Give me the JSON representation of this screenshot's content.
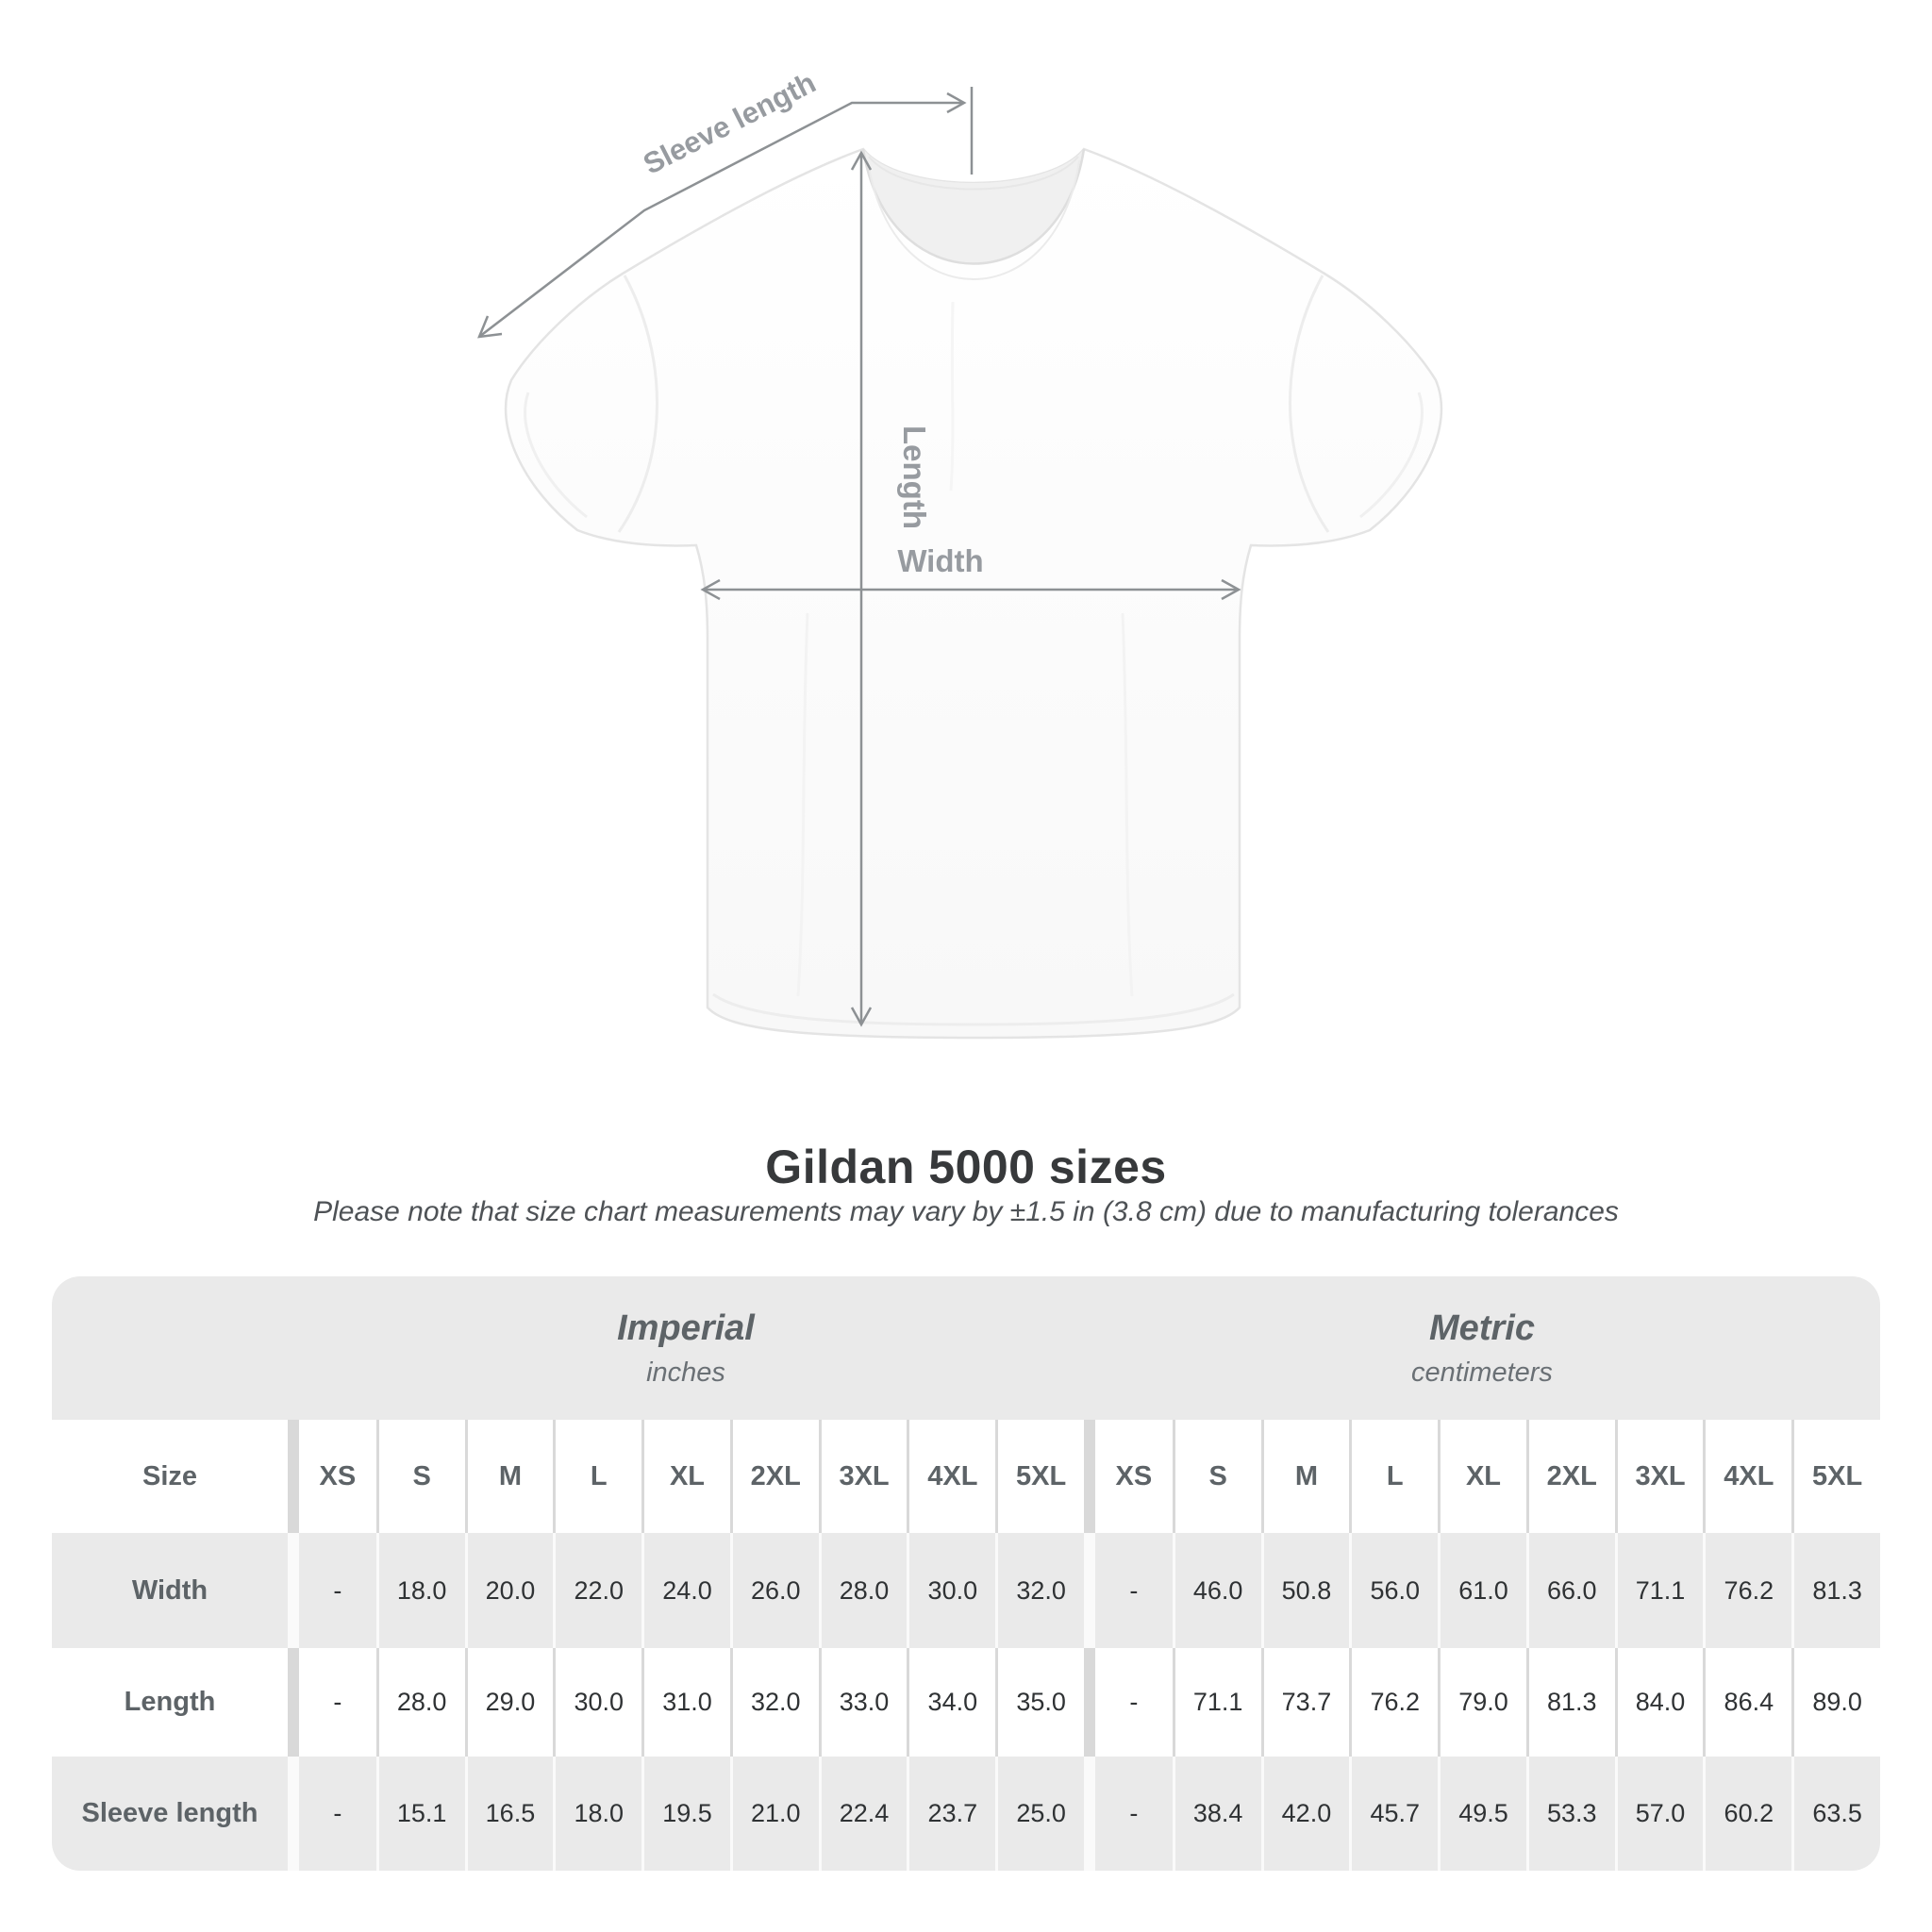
{
  "diagram": {
    "sleeve_length_label": "Sleeve length",
    "length_label": "Length",
    "width_label": "Width"
  },
  "title": "Gildan 5000 sizes",
  "subtitle": "Please note that size chart measurements may vary by ±1.5 in (3.8 cm) due to manufacturing tolerances",
  "table": {
    "size_header": "Size",
    "imperial": {
      "label": "Imperial",
      "unit": "inches",
      "sizes": [
        "XS",
        "S",
        "M",
        "L",
        "XL",
        "2XL",
        "3XL",
        "4XL",
        "5XL"
      ]
    },
    "metric": {
      "label": "Metric",
      "unit": "centimeters",
      "sizes": [
        "XS",
        "S",
        "M",
        "L",
        "XL",
        "2XL",
        "3XL",
        "4XL",
        "5XL"
      ]
    },
    "rows": [
      {
        "label": "Width",
        "imperial": [
          "-",
          "18.0",
          "20.0",
          "22.0",
          "24.0",
          "26.0",
          "28.0",
          "30.0",
          "32.0"
        ],
        "metric": [
          "-",
          "46.0",
          "50.8",
          "56.0",
          "61.0",
          "66.0",
          "71.1",
          "76.2",
          "81.3"
        ]
      },
      {
        "label": "Length",
        "imperial": [
          "-",
          "28.0",
          "29.0",
          "30.0",
          "31.0",
          "32.0",
          "33.0",
          "34.0",
          "35.0"
        ],
        "metric": [
          "-",
          "71.1",
          "73.7",
          "76.2",
          "79.0",
          "81.3",
          "84.0",
          "86.4",
          "89.0"
        ]
      },
      {
        "label": "Sleeve length",
        "imperial": [
          "-",
          "15.1",
          "16.5",
          "18.0",
          "19.5",
          "21.0",
          "22.4",
          "23.7",
          "25.0"
        ],
        "metric": [
          "-",
          "38.4",
          "42.0",
          "45.7",
          "49.5",
          "53.3",
          "57.0",
          "60.2",
          "63.5"
        ]
      }
    ]
  },
  "colors": {
    "annotation_line": "#8d9194",
    "annotation_label": "#979ba0",
    "table_band_gray": "#eaeaea",
    "separator_gray": "#d9d9d9",
    "title_text": "#37393b",
    "subtitle_text": "#4e5256",
    "header_text": "#5d6367",
    "number_text": "#2f3234",
    "shirt_outline": "#e4e4e4"
  }
}
